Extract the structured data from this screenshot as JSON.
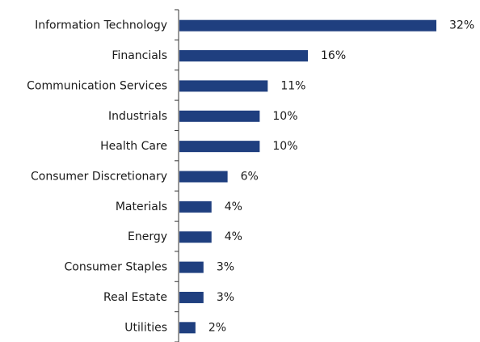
{
  "chart_data": {
    "type": "bar",
    "orientation": "horizontal",
    "categories": [
      "Information Technology",
      "Financials",
      "Communication Services",
      "Industrials",
      "Health Care",
      "Consumer Discretionary",
      "Materials",
      "Energy",
      "Consumer Staples",
      "Real Estate",
      "Utilities"
    ],
    "values": [
      32,
      16,
      11,
      10,
      10,
      6,
      4,
      4,
      3,
      3,
      2
    ],
    "value_labels": [
      "32%",
      "16%",
      "11%",
      "10%",
      "10%",
      "6%",
      "4%",
      "4%",
      "3%",
      "3%",
      "2%"
    ],
    "value_unit": "%",
    "title": "",
    "xlabel": "",
    "ylabel": "",
    "xlim": [
      0,
      33
    ],
    "grid": false,
    "legend": "none",
    "bar_color": "#1F3F7F"
  }
}
